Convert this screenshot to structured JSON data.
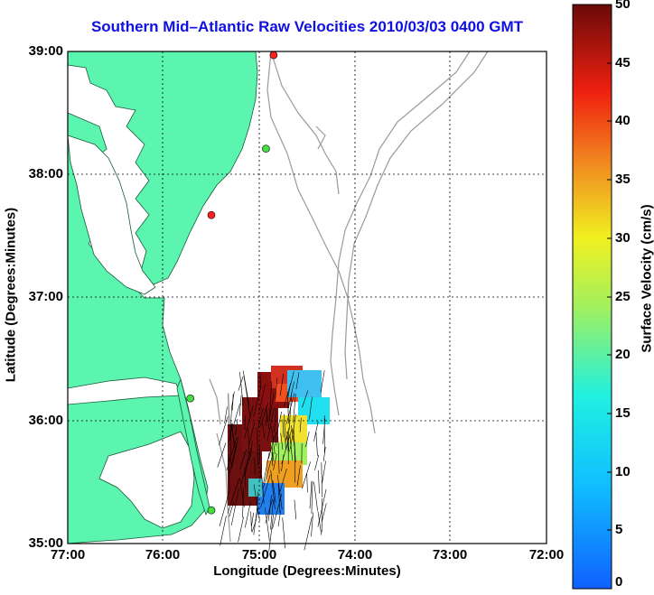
{
  "title": "Southern Mid–Atlantic Raw Velocities 2010/03/03 0400 GMT",
  "xlabel": "Longitude (Degrees:Minutes)",
  "ylabel": "Latitude (Degrees:Minutes)",
  "colorbar_label": "Surface Velocity (cm/s)",
  "x_ticks": [
    "77:00",
    "76:00",
    "75:00",
    "74:00",
    "73:00",
    "72:00"
  ],
  "y_ticks": [
    "39:00",
    "38:00",
    "37:00",
    "36:00",
    "35:00"
  ],
  "colorbar_ticks": [
    "50",
    "45",
    "40",
    "35",
    "30",
    "25",
    "20",
    "15",
    "10",
    "5",
    "0"
  ],
  "colors": {
    "land": "#5cf5b0",
    "land_outline": "#1a5a3a",
    "water": "#ffffff",
    "bathymetry": "#9a9a9a",
    "grid": "#000000",
    "title": "#1010e0"
  },
  "chart_data": {
    "type": "map",
    "xlim": [
      -77,
      -72
    ],
    "ylim": [
      35,
      39
    ],
    "grid": true,
    "colorbar": {
      "min": 0,
      "max": 50,
      "units": "cm/s",
      "colormap": "jet"
    },
    "stations": [
      {
        "lon": -74.85,
        "lat": 38.97,
        "color": "#ff2020"
      },
      {
        "lon": -74.93,
        "lat": 38.21,
        "color": "#40e040"
      },
      {
        "lon": -75.5,
        "lat": 37.67,
        "color": "#ff2020"
      },
      {
        "lon": -75.72,
        "lat": 36.18,
        "color": "#40e040"
      },
      {
        "lon": -75.5,
        "lat": 35.27,
        "color": "#40e040"
      }
    ]
  }
}
